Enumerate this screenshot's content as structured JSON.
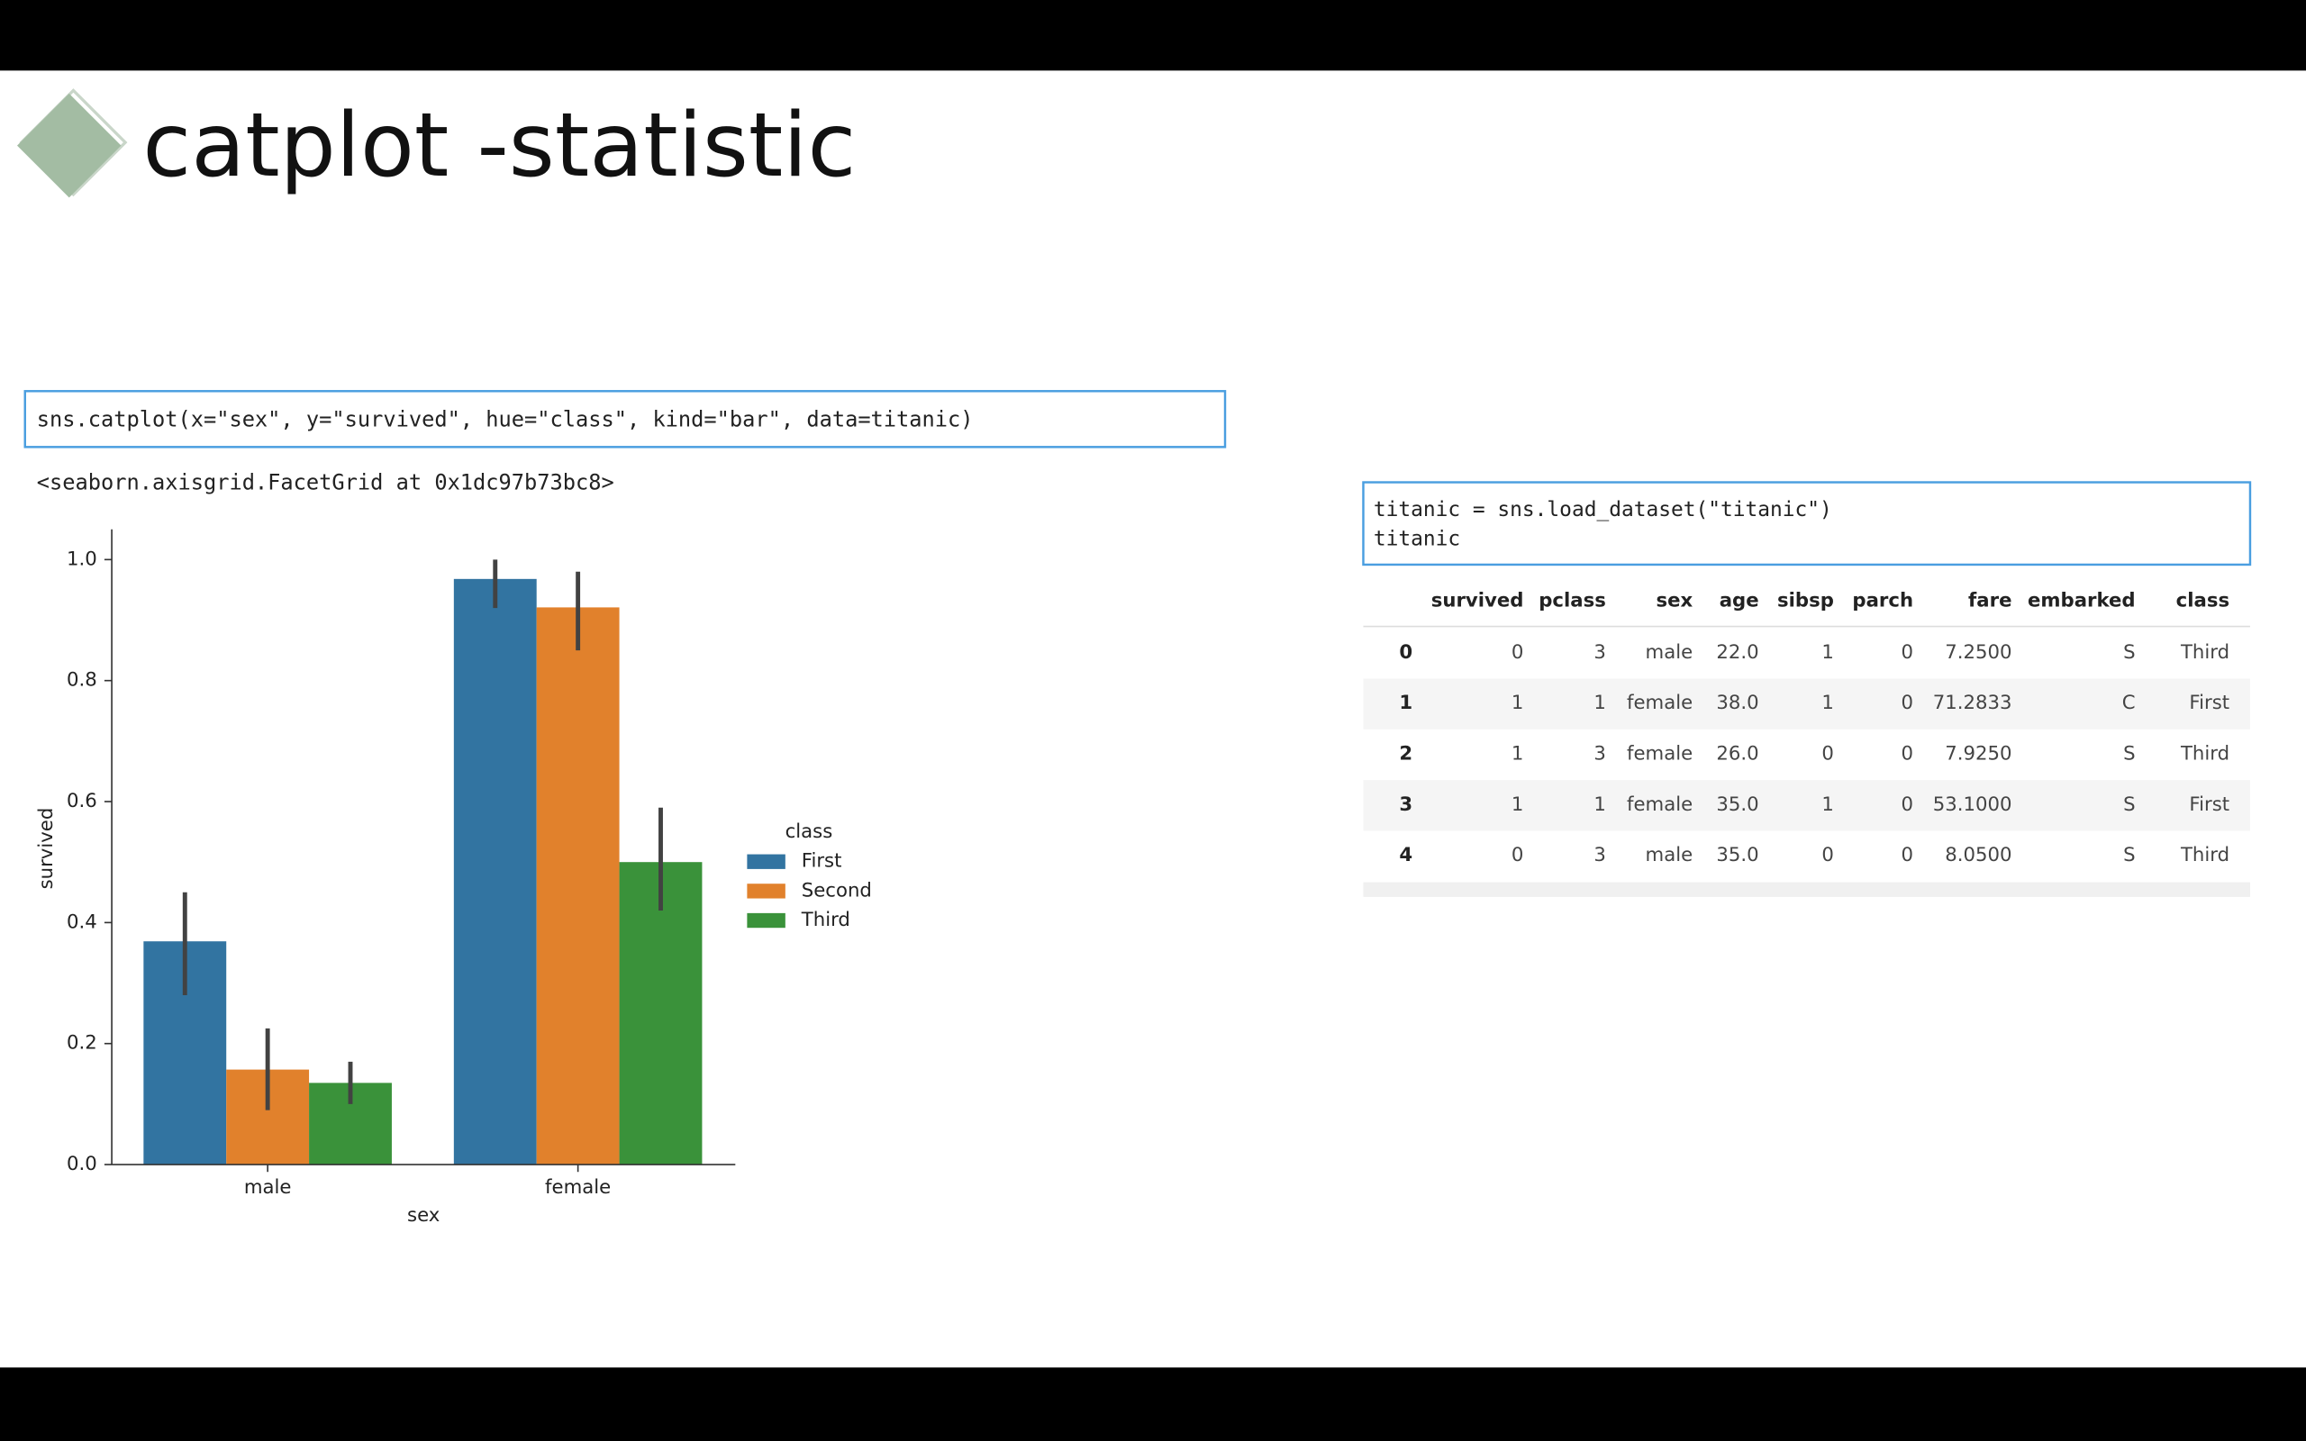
{
  "slide_title": "catplot -statistic",
  "code_cell_1": {
    "code": "sns.catplot(x=\"sex\", y=\"survived\", hue=\"class\", kind=\"bar\", data=titanic)",
    "output": "<seaborn.axisgrid.FacetGrid at 0x1dc97b73bc8>"
  },
  "code_cell_2": {
    "lines": [
      "titanic = sns.load_dataset(\"titanic\")",
      "titanic"
    ]
  },
  "table": {
    "columns": [
      "survived",
      "pclass",
      "sex",
      "age",
      "sibsp",
      "parch",
      "fare",
      "embarked",
      "class"
    ],
    "rows": [
      [
        "0",
        "0",
        "3",
        "male",
        "22.0",
        "1",
        "0",
        "7.2500",
        "S",
        "Third"
      ],
      [
        "1",
        "1",
        "1",
        "female",
        "38.0",
        "1",
        "0",
        "71.2833",
        "C",
        "First"
      ],
      [
        "2",
        "1",
        "3",
        "female",
        "26.0",
        "0",
        "0",
        "7.9250",
        "S",
        "Third"
      ],
      [
        "3",
        "1",
        "1",
        "female",
        "35.0",
        "1",
        "0",
        "53.1000",
        "S",
        "First"
      ],
      [
        "4",
        "0",
        "3",
        "male",
        "35.0",
        "0",
        "0",
        "8.0500",
        "S",
        "Third"
      ]
    ]
  },
  "chart_data": {
    "type": "bar",
    "x_label": "sex",
    "y_label": "survived",
    "legend_title": "class",
    "categories": [
      "male",
      "female"
    ],
    "series": [
      {
        "name": "First",
        "color": "#3274a1",
        "values": [
          0.369,
          0.968
        ],
        "ci": [
          [
            0.28,
            0.45
          ],
          [
            0.92,
            1.0
          ]
        ]
      },
      {
        "name": "Second",
        "color": "#e1812c",
        "values": [
          0.157,
          0.921
        ],
        "ci": [
          [
            0.09,
            0.225
          ],
          [
            0.85,
            0.98
          ]
        ]
      },
      {
        "name": "Third",
        "color": "#3a923a",
        "values": [
          0.135,
          0.5
        ],
        "ci": [
          [
            0.1,
            0.17
          ],
          [
            0.42,
            0.59
          ]
        ]
      }
    ],
    "ylim": [
      0,
      1.05
    ],
    "yticks": [
      {
        "value": 0,
        "label": "0.0"
      },
      0.2,
      0.4,
      0.6,
      0.8,
      {
        "value": 1,
        "label": "1.0"
      }
    ],
    "errorbar_color": "#424242",
    "legend": "right"
  }
}
